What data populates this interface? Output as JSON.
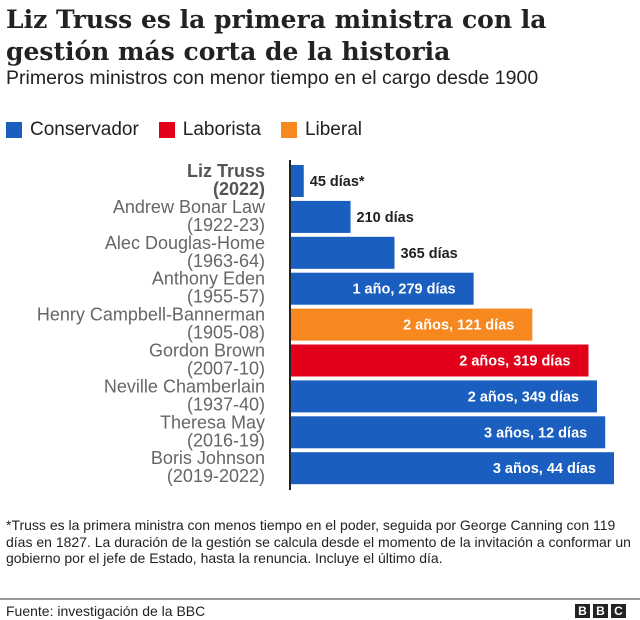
{
  "title": "Liz Truss es la primera ministra con la gestión más corta de la historia",
  "subtitle": "Primeros ministros con menor tiempo en el cargo desde 1900",
  "legend": [
    {
      "label": "Conservador",
      "color": "#1a5ebf"
    },
    {
      "label": "Laborista",
      "color": "#e2001a"
    },
    {
      "label": "Liberal",
      "color": "#f6881f"
    }
  ],
  "chart_data": {
    "type": "bar",
    "orientation": "horizontal",
    "categories": [
      {
        "name": "Liz Truss",
        "years": "(2022)",
        "party": "Conservador",
        "bold": true
      },
      {
        "name": "Andrew Bonar Law",
        "years": "(1922-23)",
        "party": "Conservador"
      },
      {
        "name": "Alec Douglas-Home",
        "years": "(1963-64)",
        "party": "Conservador"
      },
      {
        "name": "Anthony Eden",
        "years": "(1955-57)",
        "party": "Conservador"
      },
      {
        "name": "Henry Campbell-Bannerman",
        "years": "(1905-08)",
        "party": "Liberal"
      },
      {
        "name": "Gordon Brown",
        "years": "(2007-10)",
        "party": "Laborista"
      },
      {
        "name": "Neville Chamberlain",
        "years": "(1937-40)",
        "party": "Conservador"
      },
      {
        "name": "Theresa May",
        "years": "(2016-19)",
        "party": "Conservador"
      },
      {
        "name": "Boris Johnson",
        "years": "(2019-2022)",
        "party": "Conservador"
      }
    ],
    "values": [
      45,
      210,
      365,
      644,
      851,
      1049,
      1079,
      1108,
      1139
    ],
    "unit": "días",
    "data_labels": [
      "45 días*",
      "210 días",
      "365 días",
      "1 año, 279 días",
      "2 años, 121 días",
      "2 años, 319 días",
      "2 años, 349 días",
      "3 años, 12 días",
      "3 años, 44 días"
    ],
    "xlim": [
      0,
      1139
    ],
    "grid": false
  },
  "footnote": "*Truss es la primera ministra con menos tiempo en el poder, seguida por George Canning con 119 días en 1827. La duración de la gestión se calcula desde el momento de la invitación a conformar un gobierno por el jefe de Estado, hasta la renuncia. Incluye el último día.",
  "source": "Fuente: investigación de la BBC",
  "logo": [
    "B",
    "B",
    "C"
  ]
}
